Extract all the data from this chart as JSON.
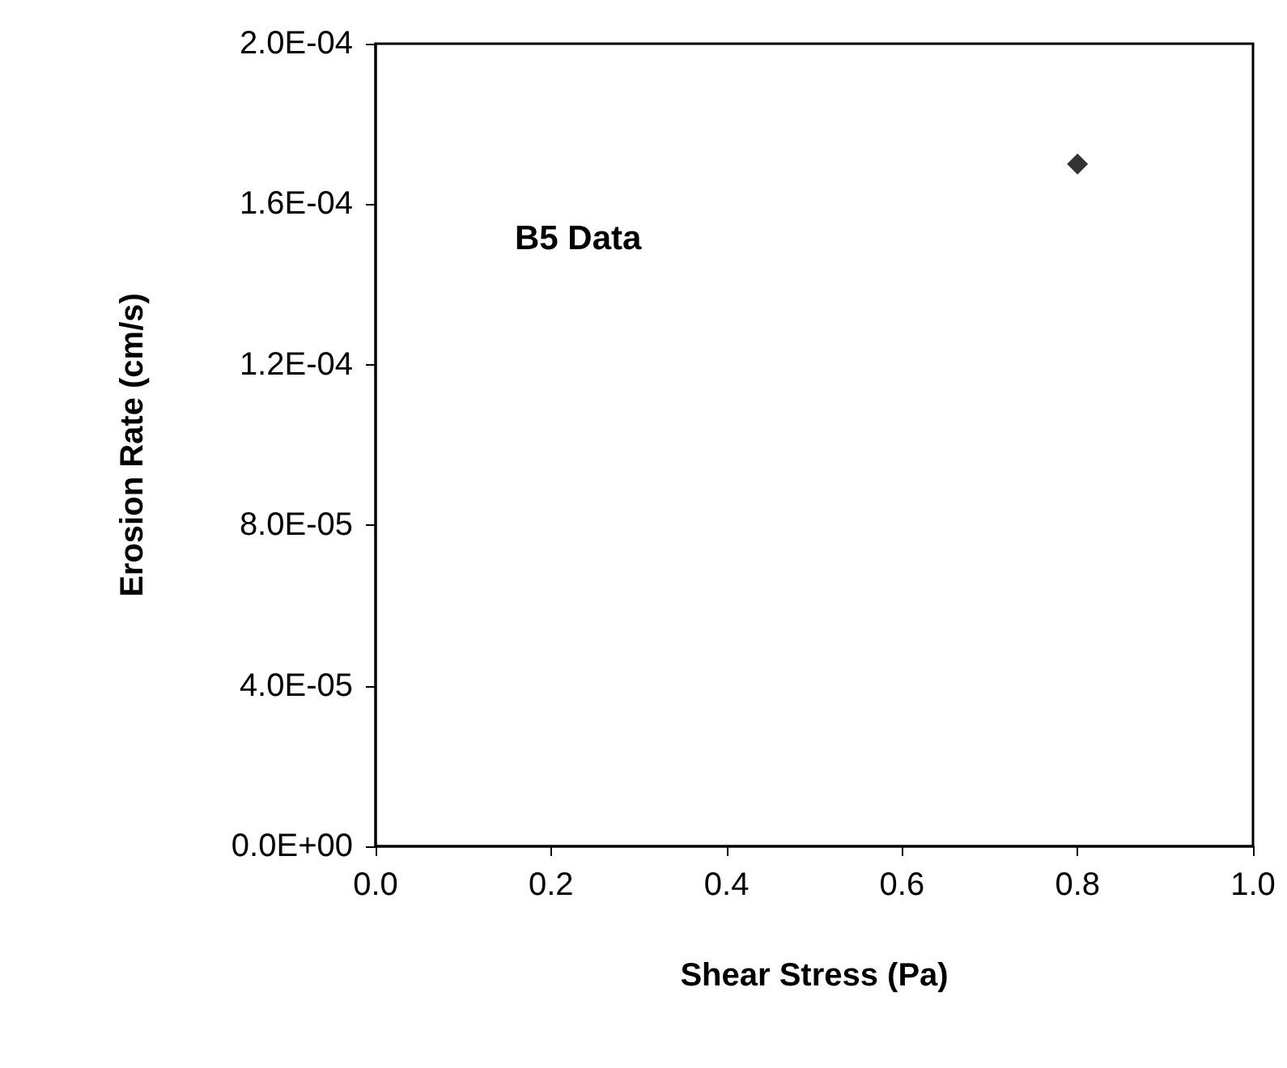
{
  "chart_data": {
    "type": "scatter",
    "xlabel": "Shear Stress (Pa)",
    "ylabel": "Erosion Rate (cm/s)",
    "annotations": [
      "B5 Data"
    ],
    "x": [
      0.8
    ],
    "series": [
      {
        "color": "#000000",
        "values": [
          0.00017
        ]
      }
    ],
    "xlim": [
      0,
      1
    ],
    "xticks": [
      {
        "value": 0,
        "label": "0.0"
      },
      {
        "value": 0.2,
        "label": "0.2"
      },
      {
        "value": 0.4,
        "label": "0.4"
      },
      {
        "value": 0.6,
        "label": "0.6"
      },
      {
        "value": 0.8,
        "label": "0.8"
      },
      {
        "value": 1,
        "label": "1.0"
      }
    ],
    "ylim": [
      0,
      0.0002
    ],
    "yticks": [
      {
        "value": 0,
        "label": "0.0E+00"
      },
      {
        "value": 4e-05,
        "label": "4.0E-05"
      },
      {
        "value": 8e-05,
        "label": "8.0E-05"
      },
      {
        "value": 0.00012,
        "label": "1.2E-04"
      },
      {
        "value": 0.00016,
        "label": "1.6E-04"
      },
      {
        "value": 0.0002,
        "label": "2.0E-04"
      }
    ],
    "marker": "diamond"
  }
}
